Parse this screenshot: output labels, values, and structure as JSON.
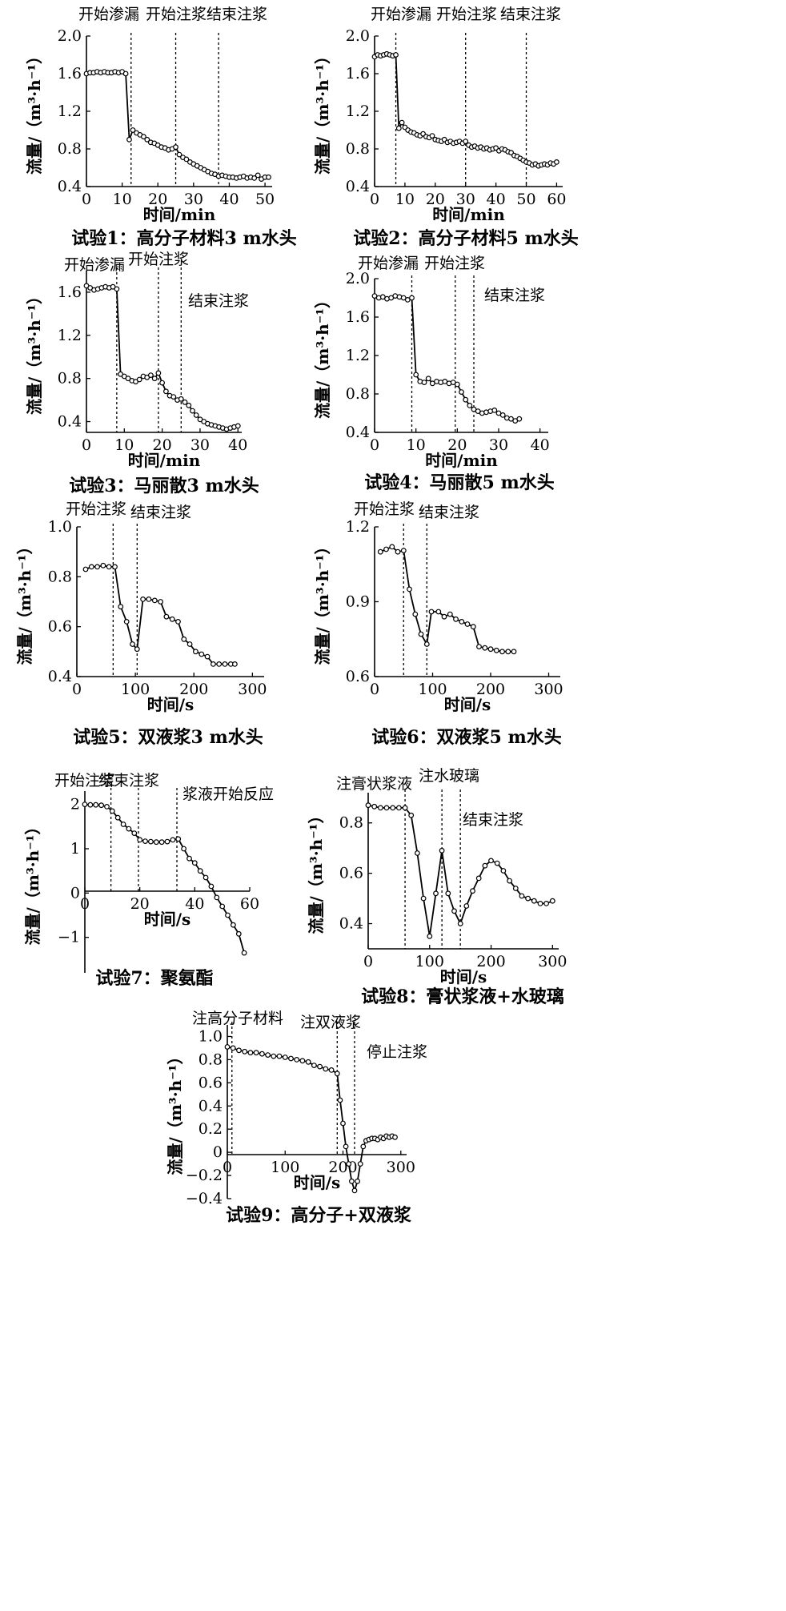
{
  "chart_data": [
    {
      "id": "exp1",
      "type": "line",
      "title": "试验1：高分子材料3 m水头",
      "xlabel": "时间/min",
      "ylabel": "流量/（m³·h⁻¹）",
      "xlim": [
        0,
        52
      ],
      "ylim": [
        0.4,
        2.0
      ],
      "xticks": [
        0,
        10,
        20,
        30,
        40,
        50
      ],
      "yticks": [
        0.4,
        0.8,
        1.2,
        1.6,
        2.0
      ],
      "ytick_labels": [
        "0.4",
        "0.8",
        "1.2",
        "1.6",
        "2.0"
      ],
      "events": [
        {
          "x": 12.5,
          "label": "开始渗漏"
        },
        {
          "x": 25,
          "label": "开始注浆"
        },
        {
          "x": 37,
          "label": "结束注浆"
        }
      ],
      "series": [
        {
          "name": "流量",
          "x": [
            0,
            1,
            2,
            3,
            4,
            5,
            6,
            7,
            8,
            9,
            10,
            11,
            12,
            13,
            14,
            15,
            16,
            17,
            18,
            19,
            20,
            21,
            22,
            23,
            24,
            25,
            26,
            27,
            28,
            29,
            30,
            31,
            32,
            33,
            34,
            35,
            36,
            37,
            38,
            39,
            40,
            41,
            42,
            43,
            44,
            45,
            46,
            47,
            48,
            49,
            50,
            51
          ],
          "y": [
            1.6,
            1.61,
            1.61,
            1.62,
            1.61,
            1.62,
            1.61,
            1.61,
            1.62,
            1.61,
            1.62,
            1.6,
            0.9,
            1.0,
            0.97,
            0.95,
            0.93,
            0.9,
            0.87,
            0.86,
            0.84,
            0.82,
            0.81,
            0.79,
            0.8,
            0.82,
            0.74,
            0.71,
            0.69,
            0.66,
            0.64,
            0.62,
            0.6,
            0.58,
            0.56,
            0.54,
            0.53,
            0.51,
            0.52,
            0.51,
            0.5,
            0.5,
            0.49,
            0.5,
            0.51,
            0.49,
            0.5,
            0.49,
            0.52,
            0.48,
            0.5,
            0.5
          ]
        }
      ]
    },
    {
      "id": "exp2",
      "type": "line",
      "title": "试验2：高分子材料5 m水头",
      "xlabel": "时间/min",
      "ylabel": "流量/（m³·h⁻¹）",
      "xlim": [
        0,
        62
      ],
      "ylim": [
        0.4,
        2.0
      ],
      "xticks": [
        0,
        10,
        20,
        30,
        40,
        50,
        60
      ],
      "yticks": [
        0.4,
        0.8,
        1.2,
        1.6,
        2.0
      ],
      "ytick_labels": [
        "0.4",
        "0.8",
        "1.2",
        "1.6",
        "2.0"
      ],
      "events": [
        {
          "x": 7,
          "label": "开始渗漏"
        },
        {
          "x": 30,
          "label": "开始注浆"
        },
        {
          "x": 50,
          "label": "结束注浆"
        }
      ],
      "series": [
        {
          "name": "流量",
          "x": [
            0,
            1,
            2,
            3,
            4,
            5,
            6,
            7,
            8,
            9,
            10,
            11,
            12,
            13,
            14,
            15,
            16,
            17,
            18,
            19,
            20,
            21,
            22,
            23,
            24,
            25,
            26,
            27,
            28,
            29,
            30,
            31,
            32,
            33,
            34,
            35,
            36,
            37,
            38,
            39,
            40,
            41,
            42,
            43,
            44,
            45,
            46,
            47,
            48,
            49,
            50,
            51,
            52,
            53,
            54,
            55,
            56,
            57,
            58,
            59,
            60
          ],
          "y": [
            1.78,
            1.8,
            1.79,
            1.8,
            1.81,
            1.8,
            1.79,
            1.8,
            1.02,
            1.08,
            1.03,
            1.0,
            0.98,
            0.97,
            0.95,
            0.94,
            0.96,
            0.93,
            0.92,
            0.94,
            0.9,
            0.89,
            0.88,
            0.9,
            0.87,
            0.88,
            0.86,
            0.87,
            0.88,
            0.86,
            0.88,
            0.84,
            0.82,
            0.83,
            0.81,
            0.82,
            0.8,
            0.81,
            0.79,
            0.8,
            0.81,
            0.78,
            0.8,
            0.79,
            0.77,
            0.76,
            0.73,
            0.72,
            0.7,
            0.68,
            0.66,
            0.65,
            0.63,
            0.64,
            0.62,
            0.63,
            0.64,
            0.63,
            0.65,
            0.64,
            0.66
          ]
        }
      ]
    },
    {
      "id": "exp3",
      "type": "line",
      "title": "试验3：马丽散3 m水头",
      "xlabel": "时间/min",
      "ylabel": "流量/（m³·h⁻¹）",
      "xlim": [
        0,
        41
      ],
      "ylim": [
        0.3,
        1.8
      ],
      "xticks": [
        0,
        10,
        20,
        30,
        40
      ],
      "yticks": [
        0.4,
        0.8,
        1.2,
        1.6
      ],
      "ytick_labels": [
        "0.4",
        "0.8",
        "1.2",
        "1.6"
      ],
      "events": [
        {
          "x": 8,
          "label": "开始渗漏"
        },
        {
          "x": 19,
          "label": "开始注浆"
        },
        {
          "x": 25,
          "label": "结束注浆"
        }
      ],
      "series": [
        {
          "name": "流量",
          "x": [
            0,
            1,
            2,
            3,
            4,
            5,
            6,
            7,
            8,
            9,
            10,
            11,
            12,
            13,
            14,
            15,
            16,
            17,
            18,
            19,
            20,
            21,
            22,
            23,
            24,
            25,
            26,
            27,
            28,
            29,
            30,
            31,
            32,
            33,
            34,
            35,
            36,
            37,
            38,
            39,
            40
          ],
          "y": [
            1.66,
            1.64,
            1.62,
            1.63,
            1.64,
            1.65,
            1.64,
            1.65,
            1.63,
            0.84,
            0.82,
            0.8,
            0.78,
            0.77,
            0.79,
            0.82,
            0.81,
            0.83,
            0.8,
            0.85,
            0.76,
            0.68,
            0.64,
            0.63,
            0.6,
            0.61,
            0.58,
            0.55,
            0.5,
            0.46,
            0.42,
            0.4,
            0.38,
            0.37,
            0.36,
            0.35,
            0.34,
            0.33,
            0.34,
            0.35,
            0.36
          ]
        }
      ]
    },
    {
      "id": "exp4",
      "type": "line",
      "title": "试验4：马丽散5 m水头",
      "xlabel": "时间/min",
      "ylabel": "流量/（m³·h⁻¹）",
      "xlim": [
        0,
        42
      ],
      "ylim": [
        0.4,
        2.0
      ],
      "xticks": [
        0,
        10,
        20,
        30,
        40
      ],
      "yticks": [
        0.4,
        0.8,
        1.2,
        1.6,
        2.0
      ],
      "ytick_labels": [
        "0.4",
        "0.8",
        "1.2",
        "1.6",
        "2.0"
      ],
      "events": [
        {
          "x": 9,
          "label": "开始渗漏"
        },
        {
          "x": 19.5,
          "label": "开始注浆"
        },
        {
          "x": 24,
          "label": "结束注浆"
        }
      ],
      "series": [
        {
          "name": "流量",
          "x": [
            0,
            1,
            2,
            3,
            4,
            5,
            6,
            7,
            8,
            9,
            10,
            11,
            12,
            13,
            14,
            15,
            16,
            17,
            18,
            19,
            20,
            21,
            22,
            23,
            24,
            25,
            26,
            27,
            28,
            29,
            30,
            31,
            32,
            33,
            34,
            35
          ],
          "y": [
            1.82,
            1.8,
            1.81,
            1.79,
            1.8,
            1.82,
            1.81,
            1.8,
            1.78,
            1.8,
            1.0,
            0.93,
            0.92,
            0.96,
            0.91,
            0.93,
            0.92,
            0.93,
            0.91,
            0.92,
            0.9,
            0.82,
            0.74,
            0.68,
            0.64,
            0.62,
            0.6,
            0.61,
            0.62,
            0.63,
            0.6,
            0.58,
            0.55,
            0.54,
            0.52,
            0.54
          ]
        }
      ]
    },
    {
      "id": "exp5",
      "type": "line",
      "title": "试验5：双液浆3 m水头",
      "xlabel": "时间/s",
      "ylabel": "流量/（m³·h⁻¹）",
      "xlim": [
        0,
        320
      ],
      "ylim": [
        0.4,
        1.0
      ],
      "xticks": [
        0,
        100,
        200,
        300
      ],
      "yticks": [
        0.4,
        0.6,
        0.8,
        1.0
      ],
      "ytick_labels": [
        "0.4",
        "0.6",
        "0.8",
        "1.0"
      ],
      "events": [
        {
          "x": 62,
          "label": "开始注浆"
        },
        {
          "x": 103,
          "label": "结束注浆"
        }
      ],
      "series": [
        {
          "name": "流量",
          "x": [
            15,
            25,
            35,
            45,
            55,
            65,
            75,
            85,
            95,
            103,
            113,
            123,
            133,
            143,
            153,
            163,
            173,
            183,
            193,
            203,
            213,
            223,
            233,
            243,
            253,
            263,
            270
          ],
          "y": [
            0.83,
            0.84,
            0.84,
            0.845,
            0.84,
            0.84,
            0.68,
            0.62,
            0.53,
            0.51,
            0.71,
            0.71,
            0.705,
            0.7,
            0.64,
            0.63,
            0.62,
            0.55,
            0.53,
            0.5,
            0.49,
            0.48,
            0.45,
            0.45,
            0.45,
            0.45,
            0.45
          ]
        }
      ]
    },
    {
      "id": "exp6",
      "type": "line",
      "title": "试验6：双液浆5 m水头",
      "xlabel": "时间/s",
      "ylabel": "流量/（m³·h⁻¹）",
      "xlim": [
        0,
        320
      ],
      "ylim": [
        0.6,
        1.2
      ],
      "xticks": [
        0,
        100,
        200,
        300
      ],
      "yticks": [
        0.6,
        0.9,
        1.2
      ],
      "ytick_labels": [
        "0.6",
        "0.9",
        "1.2"
      ],
      "events": [
        {
          "x": 50,
          "label": "开始注浆"
        },
        {
          "x": 90,
          "label": "结束注浆"
        }
      ],
      "series": [
        {
          "name": "流量",
          "x": [
            10,
            20,
            30,
            40,
            50,
            60,
            70,
            80,
            90,
            98,
            110,
            120,
            130,
            140,
            150,
            160,
            170,
            180,
            190,
            200,
            210,
            220,
            230,
            240
          ],
          "y": [
            1.1,
            1.11,
            1.12,
            1.1,
            1.105,
            0.95,
            0.85,
            0.77,
            0.73,
            0.86,
            0.86,
            0.84,
            0.85,
            0.83,
            0.82,
            0.81,
            0.8,
            0.72,
            0.715,
            0.71,
            0.705,
            0.7,
            0.7,
            0.7
          ]
        }
      ]
    },
    {
      "id": "exp7",
      "type": "line",
      "title": "试验7：聚氨酯",
      "xlabel": "时间/s",
      "ylabel": "流量/（m³·h⁻¹）",
      "xlim": [
        0,
        60
      ],
      "ylim": [
        -1.8,
        2.3
      ],
      "xticks": [
        0,
        20,
        40,
        60
      ],
      "yticks": [
        -1,
        0,
        1,
        2
      ],
      "ytick_labels": [
        "−1",
        "0",
        "1",
        "2"
      ],
      "events": [
        {
          "x": 9.5,
          "label": "开始注浆"
        },
        {
          "x": 19.5,
          "label": "结束注浆"
        },
        {
          "x": 33.5,
          "label": "浆液开始反应"
        }
      ],
      "series": [
        {
          "name": "流量",
          "x": [
            0,
            2,
            4,
            6,
            8,
            10,
            12,
            14,
            16,
            18,
            20,
            22,
            24,
            26,
            28,
            30,
            32,
            34,
            36,
            38,
            40,
            42,
            44,
            46,
            48,
            50,
            52,
            54,
            56,
            58
          ],
          "y": [
            2.0,
            1.99,
            1.99,
            1.98,
            1.95,
            1.85,
            1.7,
            1.55,
            1.45,
            1.35,
            1.2,
            1.17,
            1.16,
            1.15,
            1.15,
            1.16,
            1.2,
            1.22,
            1.0,
            0.78,
            0.68,
            0.5,
            0.35,
            0.15,
            -0.1,
            -0.3,
            -0.5,
            -0.72,
            -0.92,
            -1.35
          ]
        }
      ]
    },
    {
      "id": "exp8",
      "type": "line",
      "title": "试验8：膏状浆液+水玻璃",
      "xlabel": "时间/s",
      "ylabel": "流量/（m³·h⁻¹）",
      "xlim": [
        0,
        310
      ],
      "ylim": [
        0.3,
        0.92
      ],
      "xticks": [
        0,
        100,
        200,
        300
      ],
      "yticks": [
        0.4,
        0.6,
        0.8
      ],
      "ytick_labels": [
        "0.4",
        "0.6",
        "0.8"
      ],
      "events": [
        {
          "x": 60,
          "label": "注膏状浆液"
        },
        {
          "x": 120,
          "label": "注水玻璃"
        },
        {
          "x": 150,
          "label": "结束注浆"
        }
      ],
      "series": [
        {
          "name": "流量",
          "x": [
            0,
            10,
            20,
            30,
            40,
            50,
            60,
            70,
            80,
            90,
            100,
            110,
            120,
            130,
            140,
            150,
            160,
            170,
            180,
            190,
            200,
            210,
            220,
            230,
            240,
            250,
            260,
            270,
            280,
            290,
            300
          ],
          "y": [
            0.87,
            0.865,
            0.86,
            0.86,
            0.86,
            0.86,
            0.86,
            0.83,
            0.68,
            0.5,
            0.35,
            0.52,
            0.69,
            0.52,
            0.45,
            0.4,
            0.47,
            0.53,
            0.58,
            0.63,
            0.65,
            0.64,
            0.61,
            0.57,
            0.54,
            0.51,
            0.5,
            0.49,
            0.48,
            0.48,
            0.49
          ]
        }
      ]
    },
    {
      "id": "exp9",
      "type": "line",
      "title": "试验9：高分子+双液浆",
      "xlabel": "时间/s",
      "ylabel": "流量/（m³·h⁻¹）",
      "xlim": [
        0,
        310
      ],
      "ylim": [
        -0.4,
        1.1
      ],
      "xticks": [
        0,
        100,
        200,
        300
      ],
      "yticks": [
        -0.4,
        -0.2,
        0,
        0.2,
        0.4,
        0.6,
        0.8,
        1.0
      ],
      "ytick_labels": [
        "−0.4",
        "−0.2",
        "0",
        "0.2",
        "0.4",
        "0.6",
        "0.8",
        "1.0"
      ],
      "events": [
        {
          "x": 8,
          "label": "注高分子材料"
        },
        {
          "x": 190,
          "label": "注双液浆"
        },
        {
          "x": 220,
          "label": "停止注浆"
        }
      ],
      "series": [
        {
          "name": "流量",
          "x": [
            0,
            10,
            20,
            30,
            40,
            50,
            60,
            70,
            80,
            90,
            100,
            110,
            120,
            130,
            140,
            150,
            160,
            170,
            180,
            190,
            195,
            200,
            205,
            210,
            215,
            220,
            225,
            230,
            235,
            240,
            245,
            250,
            255,
            260,
            265,
            270,
            275,
            280,
            285,
            290
          ],
          "y": [
            0.91,
            0.9,
            0.88,
            0.87,
            0.86,
            0.86,
            0.85,
            0.84,
            0.83,
            0.83,
            0.82,
            0.81,
            0.8,
            0.79,
            0.78,
            0.75,
            0.74,
            0.72,
            0.71,
            0.68,
            0.45,
            0.25,
            0.05,
            -0.1,
            -0.25,
            -0.33,
            -0.25,
            -0.1,
            0.05,
            0.1,
            0.11,
            0.12,
            0.12,
            0.11,
            0.13,
            0.12,
            0.14,
            0.13,
            0.14,
            0.13
          ]
        }
      ]
    }
  ]
}
